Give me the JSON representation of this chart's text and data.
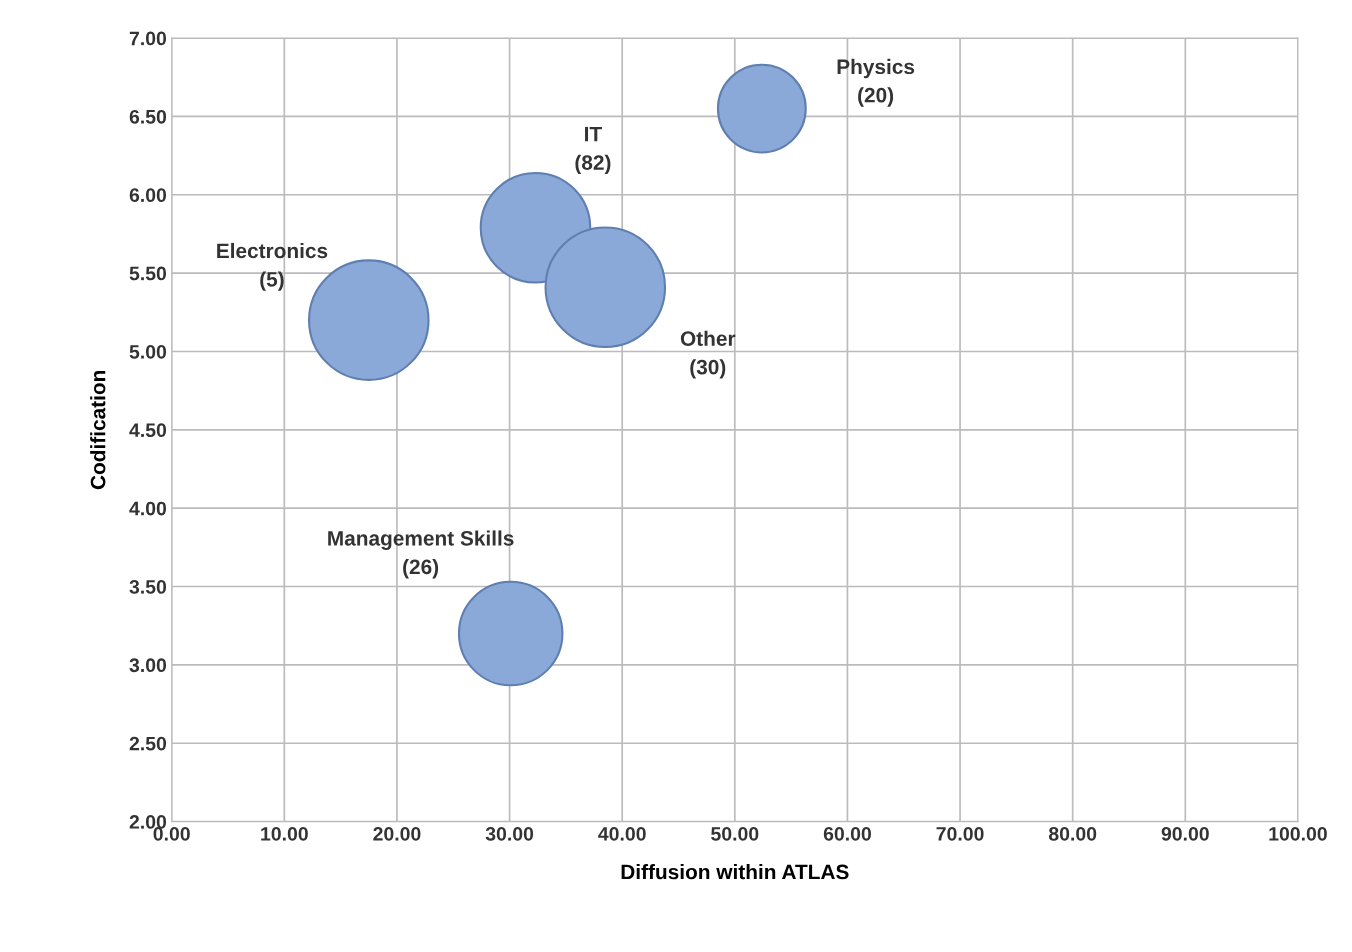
{
  "chart_data": {
    "type": "bubble",
    "xlabel": "Diffusion within ATLAS",
    "ylabel": "Codification",
    "x": [
      52.4,
      32.3,
      38.5,
      17.5,
      30.1
    ],
    "series": [
      {
        "color": "#8aa8d8",
        "values": [
          6.55,
          5.79,
          5.41,
          5.2,
          3.2
        ],
        "sizes": [
          0.54,
          0.84,
          1,
          1,
          0.75
        ]
      }
    ],
    "xlim": [
      0,
      100
    ],
    "ylim": [
      2,
      7
    ],
    "xticks": [
      {
        "value": 0,
        "label": "0.00"
      },
      {
        "value": 10,
        "label": "10.00"
      },
      {
        "value": 20,
        "label": "20.00"
      },
      {
        "value": 30,
        "label": "30.00"
      },
      {
        "value": 40,
        "label": "40.00"
      },
      {
        "value": 50,
        "label": "50.00"
      },
      {
        "value": 60,
        "label": "60.00"
      },
      {
        "value": 70,
        "label": "70.00"
      },
      {
        "value": 80,
        "label": "80.00"
      },
      {
        "value": 90,
        "label": "90.00"
      },
      {
        "value": 100,
        "label": "100.00"
      }
    ],
    "yticks": [
      {
        "value": 2,
        "label": "2.00"
      },
      {
        "value": 2.5,
        "label": "2.50"
      },
      {
        "value": 3,
        "label": "3.00"
      },
      {
        "value": 3.5,
        "label": "3.50"
      },
      {
        "value": 4,
        "label": "4.00"
      },
      {
        "value": 4.5,
        "label": "4.50"
      },
      {
        "value": 5,
        "label": "5.00"
      },
      {
        "value": 5.5,
        "label": "5.50"
      },
      {
        "value": 6,
        "label": "6.00"
      },
      {
        "value": 6.5,
        "label": "6.50"
      },
      {
        "value": 7,
        "label": "7.00"
      }
    ],
    "grid": true,
    "annotations": [
      "Physics\n(20)",
      "IT\n(82)",
      "Other\n(30)",
      "Electronics\n(5)",
      "Management Skills\n(26)"
    ]
  }
}
